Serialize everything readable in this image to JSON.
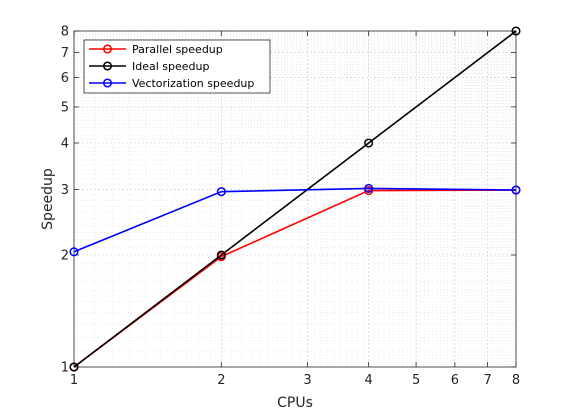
{
  "chart_data": {
    "type": "line",
    "xlabel": "CPUs",
    "ylabel": "Speedup",
    "xscale": "log",
    "yscale": "log",
    "xlim": [
      1,
      8
    ],
    "ylim": [
      1,
      8
    ],
    "xticks": [
      1,
      2,
      3,
      4,
      5,
      6,
      7,
      8
    ],
    "yticks": [
      1,
      2,
      3,
      4,
      5,
      6,
      7,
      8
    ],
    "xtick_labels": [
      "1",
      "2",
      "3",
      "4",
      "5",
      "6",
      "7",
      "8"
    ],
    "ytick_labels": [
      "1",
      "2",
      "3",
      "4",
      "5",
      "6",
      "7",
      "8"
    ],
    "grid": true,
    "minor_grid": true,
    "legend_position": "top-left",
    "series": [
      {
        "name": "Parallel speedup",
        "color": "#ff0000",
        "marker": "circle",
        "x": [
          1,
          2,
          4,
          8
        ],
        "y": [
          1.0,
          1.98,
          2.98,
          2.99
        ]
      },
      {
        "name": "Ideal speedup",
        "color": "#000000",
        "marker": "circle",
        "x": [
          1,
          2,
          4,
          8
        ],
        "y": [
          1,
          2,
          4,
          8
        ]
      },
      {
        "name": "Vectorization speedup",
        "color": "#0000ff",
        "marker": "circle",
        "x": [
          1,
          2,
          4,
          8
        ],
        "y": [
          2.04,
          2.96,
          3.02,
          2.99
        ]
      }
    ]
  }
}
